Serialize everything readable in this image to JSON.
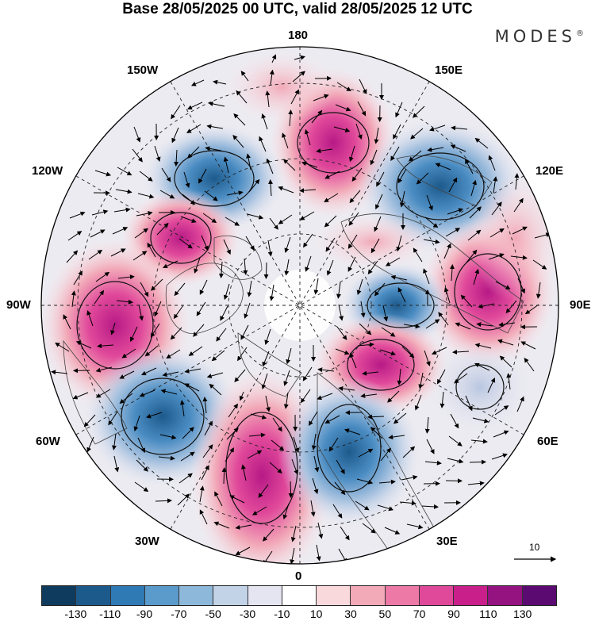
{
  "title": "Base 28/05/2025 00 UTC, valid 28/05/2025 12 UTC",
  "logo": {
    "text": "MODES",
    "mark": "®"
  },
  "longitude_labels": {
    "top": "180",
    "bottom": "0",
    "left": "90W",
    "right": "90E",
    "upper_left_1": "150W",
    "upper_left_2": "120W",
    "upper_right_1": "150E",
    "upper_right_2": "120E",
    "lower_left_1": "60W",
    "lower_left_2": "30W",
    "lower_right_1": "60E",
    "lower_right_2": "30E"
  },
  "vector_scale": {
    "label": "10"
  },
  "colorbar": {
    "colors": [
      "#0f3b5f",
      "#1d5a8c",
      "#2f79b5",
      "#5a9bcb",
      "#8eb8da",
      "#c2d3e8",
      "#e4e5f1",
      "#ffffff",
      "#f9d9dc",
      "#f2a9b8",
      "#ec79a6",
      "#e0489a",
      "#c81f8a",
      "#951281",
      "#5b0a72"
    ],
    "ticks": [
      "-130",
      "-110",
      "-90",
      "-70",
      "-50",
      "-30",
      "-10",
      "10",
      "30",
      "50",
      "70",
      "90",
      "110",
      "130"
    ]
  },
  "anomalies": [
    {
      "sign": "+",
      "value": 80
    },
    {
      "sign": "-",
      "value": -70
    },
    {
      "sign": "-",
      "value": -80
    },
    {
      "sign": "+",
      "value": 70
    },
    {
      "sign": "+",
      "value": 80
    },
    {
      "sign": "+",
      "value": 70
    },
    {
      "sign": "-",
      "value": -60
    },
    {
      "sign": "+",
      "value": 70
    },
    {
      "sign": "-",
      "value": -90
    },
    {
      "sign": "+",
      "value": 90
    },
    {
      "sign": "-",
      "value": -80
    },
    {
      "sign": "+",
      "value": 60
    },
    {
      "sign": "-",
      "value": -40
    }
  ]
}
